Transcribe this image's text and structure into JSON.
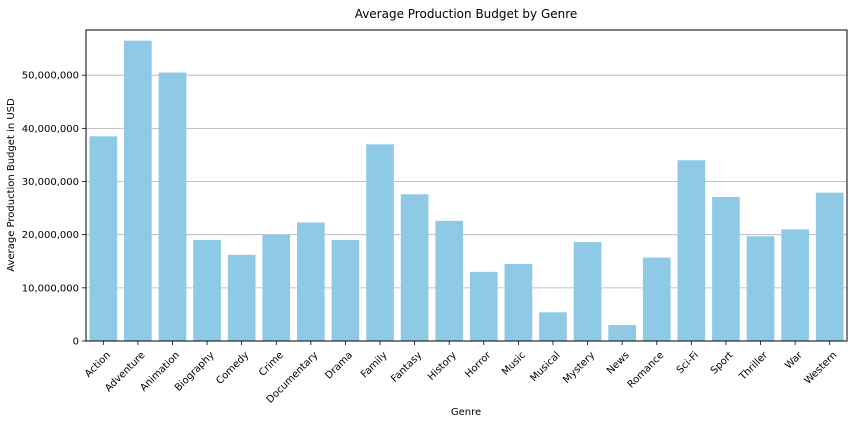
{
  "chart_data": {
    "type": "bar",
    "title": "Average Production Budget by Genre",
    "xlabel": "Genre",
    "ylabel": "Average Production Budget in USD",
    "categories": [
      "Action",
      "Adventure",
      "Animation",
      "Biography",
      "Comedy",
      "Crime",
      "Documentary",
      "Drama",
      "Family",
      "Fantasy",
      "History",
      "Horror",
      "Music",
      "Musical",
      "Mystery",
      "News",
      "Romance",
      "Sci-Fi",
      "Sport",
      "Thriller",
      "War",
      "Western"
    ],
    "values": [
      38500000,
      56500000,
      50500000,
      19000000,
      16200000,
      20000000,
      22300000,
      19000000,
      37000000,
      27600000,
      22600000,
      13000000,
      14500000,
      5400000,
      18600000,
      3000000,
      15700000,
      34000000,
      27100000,
      19700000,
      21000000,
      27900000
    ],
    "ylim": [
      0,
      58500000
    ],
    "yticks": [
      0,
      10000000,
      20000000,
      30000000,
      40000000,
      50000000
    ],
    "ytick_labels": [
      "0",
      "10,000,000",
      "20,000,000",
      "30,000,000",
      "40,000,000",
      "50,000,000"
    ],
    "grid": "y",
    "bar_color": "#8ecae6"
  }
}
